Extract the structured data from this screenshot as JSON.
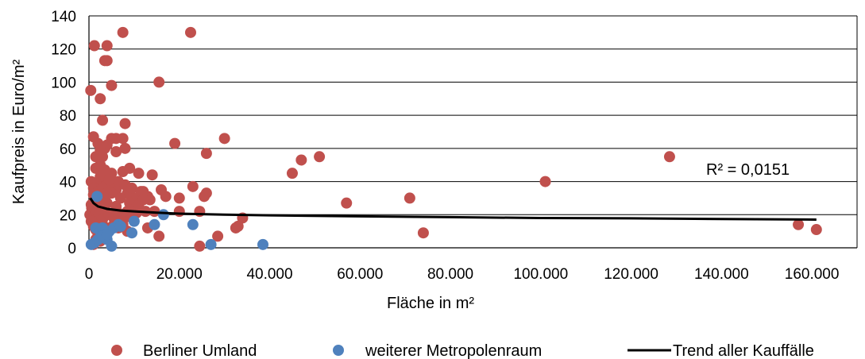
{
  "chart_data": {
    "type": "scatter",
    "title": "",
    "xlabel": "Fläche in m²",
    "ylabel": "Kaufpreis in Euro/m²",
    "xlim": [
      0,
      170000
    ],
    "ylim": [
      0,
      140
    ],
    "x_ticks": [
      0,
      20000,
      40000,
      60000,
      80000,
      100000,
      120000,
      140000,
      160000
    ],
    "x_tick_labels": [
      "0",
      "20.000",
      "40.000",
      "60.000",
      "80.000",
      "100.000",
      "120.000",
      "140.000",
      "160.000"
    ],
    "y_ticks": [
      0,
      20,
      40,
      60,
      80,
      100,
      120,
      140
    ],
    "y_tick_labels": [
      "0",
      "20",
      "40",
      "60",
      "80",
      "100",
      "120",
      "140"
    ],
    "grid": "horizontal",
    "legend_position": "bottom",
    "annotation": "R² = 0,0151",
    "colors": {
      "berlin": "#c0504d",
      "metro": "#4f81bd",
      "trend": "#000000"
    },
    "series": [
      {
        "name": "Berliner Umland",
        "points": [
          [
            400,
            95
          ],
          [
            1200,
            122
          ],
          [
            4000,
            122
          ],
          [
            7500,
            130
          ],
          [
            22500,
            130
          ],
          [
            3500,
            113
          ],
          [
            4000,
            113
          ],
          [
            15500,
            100
          ],
          [
            5000,
            98
          ],
          [
            2500,
            90
          ],
          [
            3000,
            77
          ],
          [
            8000,
            75
          ],
          [
            1000,
            67
          ],
          [
            30000,
            66
          ],
          [
            5000,
            66
          ],
          [
            6000,
            66
          ],
          [
            7500,
            66
          ],
          [
            19000,
            63
          ],
          [
            4000,
            62
          ],
          [
            2000,
            63
          ],
          [
            8000,
            60
          ],
          [
            6000,
            58
          ],
          [
            26000,
            57
          ],
          [
            128500,
            55
          ],
          [
            51000,
            55
          ],
          [
            47000,
            53
          ],
          [
            1500,
            55
          ],
          [
            3000,
            55
          ],
          [
            45000,
            45
          ],
          [
            9000,
            48
          ],
          [
            11000,
            45
          ],
          [
            7500,
            46
          ],
          [
            14000,
            44
          ],
          [
            101000,
            40
          ],
          [
            16000,
            35
          ],
          [
            12000,
            34
          ],
          [
            17000,
            31
          ],
          [
            20000,
            30
          ],
          [
            23000,
            37
          ],
          [
            26000,
            33
          ],
          [
            25500,
            31
          ],
          [
            71000,
            30
          ],
          [
            57000,
            27
          ],
          [
            13500,
            29
          ],
          [
            10000,
            30
          ],
          [
            8500,
            33
          ],
          [
            6000,
            35
          ],
          [
            4500,
            38
          ],
          [
            3500,
            41
          ],
          [
            2500,
            43
          ],
          [
            1500,
            39
          ],
          [
            500,
            40
          ],
          [
            1000,
            32
          ],
          [
            2000,
            28
          ],
          [
            3000,
            30
          ],
          [
            4000,
            27
          ],
          [
            5000,
            33
          ],
          [
            6000,
            25
          ],
          [
            7000,
            30
          ],
          [
            9000,
            27
          ],
          [
            11000,
            26
          ],
          [
            12500,
            22
          ],
          [
            14500,
            22
          ],
          [
            20000,
            22
          ],
          [
            24500,
            22
          ],
          [
            34000,
            18
          ],
          [
            33000,
            13
          ],
          [
            32500,
            12
          ],
          [
            28500,
            7
          ],
          [
            15500,
            7
          ],
          [
            24500,
            1
          ],
          [
            74000,
            9
          ],
          [
            157000,
            14
          ],
          [
            161000,
            11
          ],
          [
            200,
            20
          ],
          [
            600,
            24
          ],
          [
            1000,
            19
          ],
          [
            1500,
            22
          ],
          [
            2000,
            18
          ],
          [
            2500,
            21
          ],
          [
            3000,
            17
          ],
          [
            3500,
            23
          ],
          [
            4500,
            20
          ],
          [
            5500,
            18
          ],
          [
            6500,
            21
          ],
          [
            7500,
            17
          ],
          [
            8500,
            22
          ],
          [
            9500,
            18
          ],
          [
            10500,
            21
          ],
          [
            500,
            16
          ],
          [
            1000,
            13
          ],
          [
            1500,
            11
          ],
          [
            2000,
            8
          ],
          [
            3000,
            10
          ],
          [
            4000,
            12
          ],
          [
            5500,
            14
          ],
          [
            6500,
            12
          ],
          [
            7500,
            14
          ],
          [
            8500,
            10
          ],
          [
            1000,
            2
          ],
          [
            1500,
            5
          ],
          [
            2500,
            4
          ],
          [
            500,
            26
          ],
          [
            1500,
            48
          ],
          [
            2500,
            50
          ],
          [
            3500,
            47
          ],
          [
            5000,
            45
          ],
          [
            6500,
            40
          ],
          [
            1000,
            36
          ],
          [
            2000,
            34
          ],
          [
            3000,
            36
          ],
          [
            4000,
            33
          ],
          [
            8000,
            38
          ],
          [
            9500,
            36
          ],
          [
            11500,
            34
          ],
          [
            13000,
            31
          ],
          [
            3500,
            60
          ],
          [
            2500,
            59
          ],
          [
            4500,
            41
          ],
          [
            9000,
            23
          ],
          [
            12000,
            29
          ],
          [
            6000,
            16
          ],
          [
            13000,
            12
          ]
        ]
      },
      {
        "name": "weiterer Metropolenraum",
        "points": [
          [
            1800,
            31
          ],
          [
            500,
            2
          ],
          [
            1200,
            3
          ],
          [
            1500,
            12
          ],
          [
            2500,
            10
          ],
          [
            3000,
            12
          ],
          [
            3500,
            8
          ],
          [
            4000,
            5
          ],
          [
            4500,
            10
          ],
          [
            5000,
            1
          ],
          [
            5500,
            12
          ],
          [
            6500,
            14
          ],
          [
            2000,
            5
          ],
          [
            3000,
            7
          ],
          [
            4000,
            8
          ],
          [
            7000,
            13
          ],
          [
            9500,
            9
          ],
          [
            10000,
            16
          ],
          [
            14500,
            14
          ],
          [
            16500,
            20
          ],
          [
            23000,
            14
          ],
          [
            27000,
            2
          ],
          [
            38500,
            2
          ]
        ]
      },
      {
        "name": "Trend aller Kauffälle",
        "trend_label": "Trend aller Kauffälle",
        "points": [
          [
            300,
            30
          ],
          [
            1000,
            27
          ],
          [
            2000,
            25
          ],
          [
            4000,
            23.5
          ],
          [
            7000,
            22.5
          ],
          [
            10000,
            22
          ],
          [
            15000,
            21.2
          ],
          [
            20000,
            20.6
          ],
          [
            30000,
            20
          ],
          [
            40000,
            19.6
          ],
          [
            60000,
            19
          ],
          [
            80000,
            18.5
          ],
          [
            100000,
            18
          ],
          [
            120000,
            17.8
          ],
          [
            140000,
            17.4
          ],
          [
            161000,
            17
          ]
        ]
      }
    ]
  }
}
